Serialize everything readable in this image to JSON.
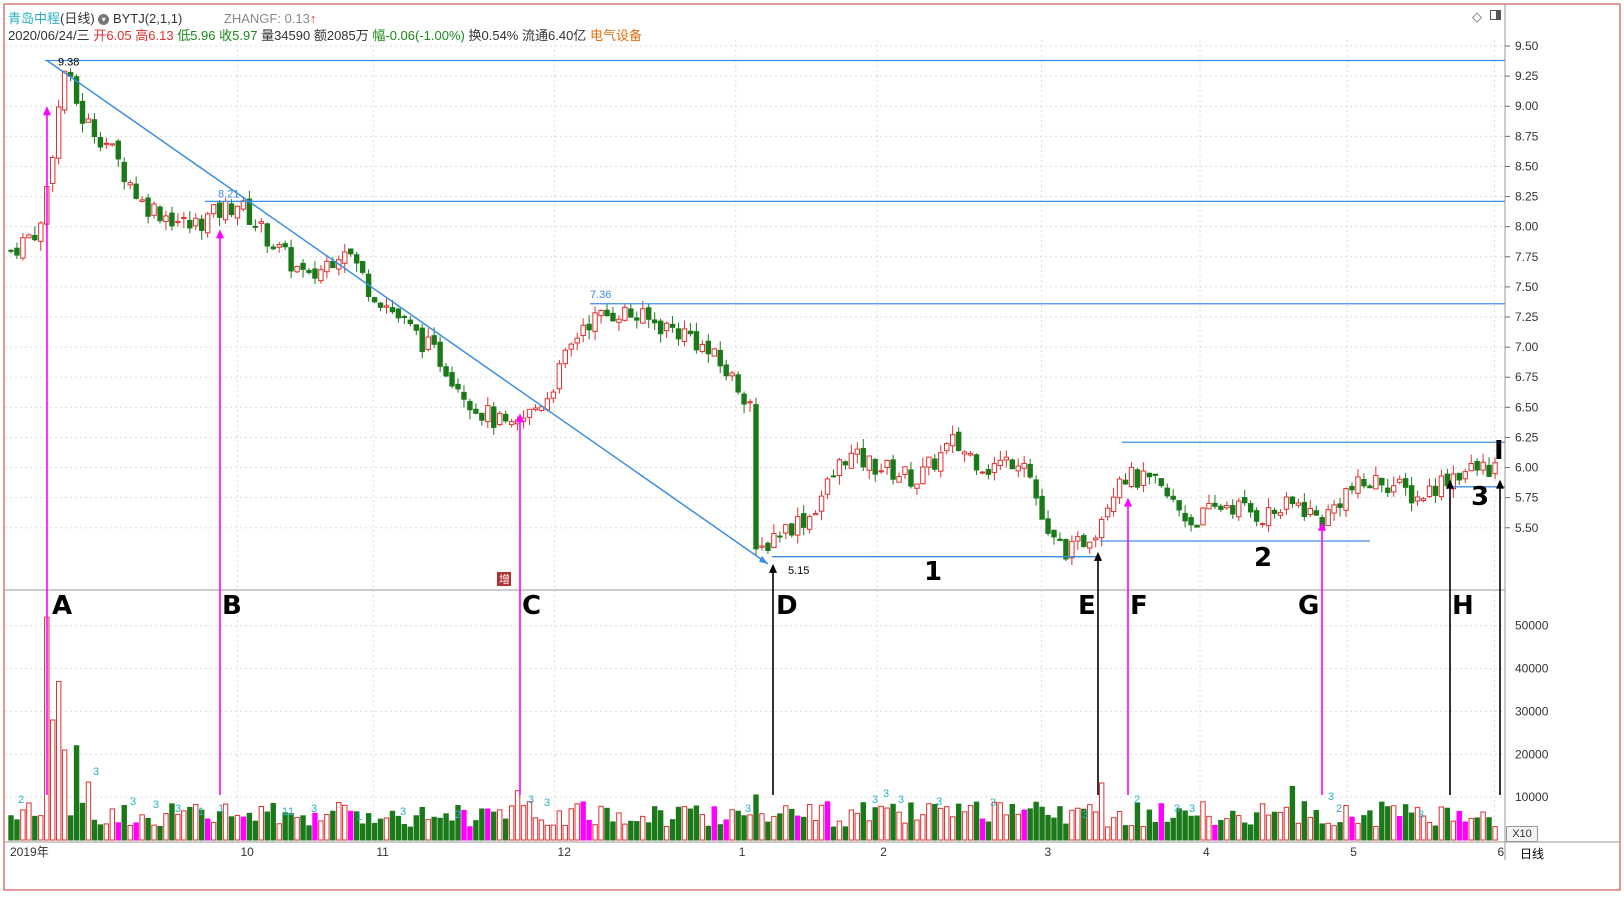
{
  "header": {
    "title": "青岛中程",
    "period": "(日线)",
    "indicator": "BYTJ(2,1,1)",
    "zhangf": "ZHANGF: 0.13",
    "zhangf_arrow": "↑",
    "line2": {
      "date": "2020/06/24/三",
      "open": "开6.05",
      "high": "高6.13",
      "low": "低5.96",
      "close": "收5.97",
      "vol": "量34590",
      "amount": "额2085万",
      "change": "幅-0.06(-1.00%)",
      "turnover": "换0.54%",
      "float": "流通6.40亿",
      "sector": "电气设备"
    }
  },
  "labels": {
    "A": "A",
    "B": "B",
    "C": "C",
    "D": "D",
    "E": "E",
    "F": "F",
    "G": "G",
    "H": "H",
    "I": "I",
    "n1": "1",
    "n2": "2",
    "n3": "3",
    "p_high": "9.38",
    "p_821": "8.21",
    "p_736": "7.36",
    "p_low": "5.15",
    "zeng": "增",
    "x10": "X10",
    "period_btn": "日线"
  },
  "colors": {
    "up": "#e03030",
    "down": "#1a7a1a",
    "magenta": "#ff00ff",
    "line": "#3c8ee0",
    "cyan": "#27b1c4"
  },
  "chart_data": {
    "type": "candlestick",
    "price_axis": {
      "ticks": [
        5.5,
        5.75,
        6.0,
        6.25,
        6.5,
        6.75,
        7.0,
        7.25,
        7.5,
        7.75,
        8.0,
        8.25,
        8.5,
        8.75,
        9.0,
        9.25,
        9.5
      ],
      "labels": [
        "5.50",
        "5.75",
        "6.00",
        "6.25",
        "6.50",
        "6.75",
        "7.00",
        "7.25",
        "7.50",
        "7.75",
        "8.00",
        "8.25",
        "8.50",
        "8.75",
        "9.00",
        "9.25",
        "9.50"
      ],
      "range": [
        5.0,
        9.55
      ]
    },
    "volume_axis": {
      "ticks": [
        10000,
        20000,
        30000,
        40000,
        50000
      ],
      "labels": [
        "10000",
        "20000",
        "30000",
        "40000",
        "50000"
      ],
      "range": [
        0,
        56000
      ]
    },
    "x_labels": [
      "2019年",
      "10",
      "11",
      "12",
      "1",
      "2",
      "3",
      "4",
      "5",
      "6"
    ],
    "horizontal_levels": [
      9.38,
      8.21,
      7.36,
      5.26,
      5.39,
      6.21,
      5.84
    ],
    "price_path": [
      [
        0,
        7.8
      ],
      [
        5,
        8.0
      ],
      [
        9,
        9.3
      ],
      [
        12,
        8.9
      ],
      [
        16,
        8.7
      ],
      [
        22,
        8.2
      ],
      [
        30,
        8.0
      ],
      [
        38,
        8.2
      ],
      [
        45,
        7.8
      ],
      [
        50,
        7.55
      ],
      [
        56,
        7.85
      ],
      [
        60,
        7.5
      ],
      [
        66,
        7.2
      ],
      [
        72,
        6.9
      ],
      [
        78,
        6.5
      ],
      [
        84,
        6.3
      ],
      [
        90,
        6.6
      ],
      [
        96,
        7.2
      ],
      [
        102,
        7.3
      ],
      [
        108,
        7.2
      ],
      [
        114,
        7.1
      ],
      [
        120,
        6.8
      ],
      [
        124,
        6.55
      ],
      [
        125,
        5.25
      ],
      [
        128,
        5.45
      ],
      [
        134,
        5.6
      ],
      [
        140,
        6.1
      ],
      [
        146,
        6.0
      ],
      [
        152,
        5.9
      ],
      [
        158,
        6.2
      ],
      [
        164,
        6.0
      ],
      [
        170,
        6.1
      ],
      [
        174,
        5.4
      ],
      [
        178,
        5.3
      ],
      [
        182,
        5.5
      ],
      [
        186,
        5.95
      ],
      [
        192,
        5.85
      ],
      [
        198,
        5.55
      ],
      [
        204,
        5.7
      ],
      [
        210,
        5.6
      ],
      [
        216,
        5.7
      ],
      [
        220,
        5.55
      ],
      [
        224,
        5.8
      ],
      [
        230,
        5.9
      ],
      [
        236,
        5.75
      ],
      [
        242,
        5.95
      ],
      [
        248,
        6.0
      ]
    ],
    "volume_spikes": [
      [
        6,
        52000
      ],
      [
        8,
        37000
      ],
      [
        30,
        7600
      ],
      [
        85,
        11500
      ],
      [
        125,
        10500
      ],
      [
        183,
        13300
      ],
      [
        215,
        12500
      ],
      [
        237,
        5600
      ]
    ],
    "markers": [
      "A",
      "B",
      "C",
      "D",
      "E",
      "F",
      "G",
      "H",
      "I"
    ]
  }
}
